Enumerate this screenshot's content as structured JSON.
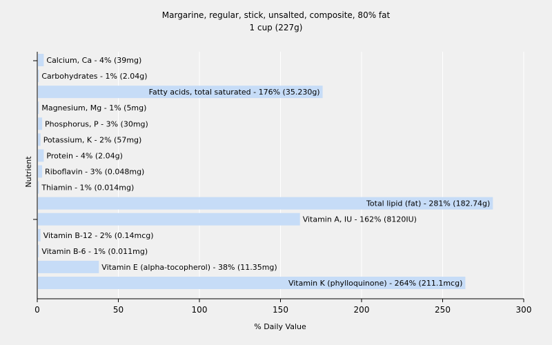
{
  "chart_data": {
    "type": "bar",
    "orientation": "horizontal",
    "title": "Margarine, regular, stick, unsalted, composite, 80% fat",
    "subtitle": "1 cup (227g)",
    "xlabel": "% Daily Value",
    "ylabel": "Nutrient",
    "xlim": [
      0,
      300
    ],
    "xticks": [
      0,
      50,
      100,
      150,
      200,
      250,
      300
    ],
    "grid": true,
    "categories": [
      "Calcium, Ca",
      "Carbohydrates",
      "Fatty acids, total saturated",
      "Magnesium, Mg",
      "Phosphorus, P",
      "Potassium, K",
      "Protein",
      "Riboflavin",
      "Thiamin",
      "Total lipid (fat)",
      "Vitamin A, IU",
      "Vitamin B-12",
      "Vitamin B-6",
      "Vitamin E (alpha-tocopherol)",
      "Vitamin K (phylloquinone)"
    ],
    "values": [
      4,
      1,
      176,
      1,
      3,
      2,
      4,
      3,
      1,
      281,
      162,
      2,
      1,
      38,
      264
    ],
    "labels": [
      "Calcium, Ca - 4% (39mg)",
      "Carbohydrates - 1% (2.04g)",
      "Fatty acids, total saturated - 176% (35.230g)",
      "Magnesium, Mg - 1% (5mg)",
      "Phosphorus, P - 3% (30mg)",
      "Potassium, K - 2% (57mg)",
      "Protein - 4% (2.04g)",
      "Riboflavin - 3% (0.048mg)",
      "Thiamin - 1% (0.014mg)",
      "Total lipid (fat) - 281% (182.74g)",
      "Vitamin A, IU - 162% (8120IU)",
      "Vitamin B-12 - 2% (0.14mcg)",
      "Vitamin B-6 - 1% (0.011mg)",
      "Vitamin E (alpha-tocopherol) - 38% (11.35mg)",
      "Vitamin K (phylloquinone) - 264% (211.1mcg)"
    ],
    "bar_color": "#c6dcf7"
  }
}
